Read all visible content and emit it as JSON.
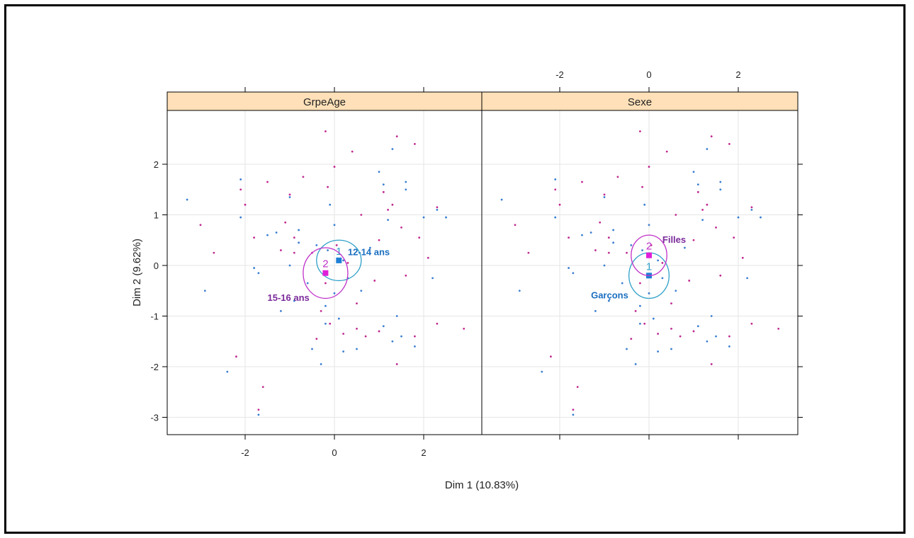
{
  "chart_data": {
    "type": "scatter",
    "xlabel": "Dim 1 (10.83%)",
    "ylabel": "Dim 2 (9.62%)",
    "xlim": [
      -3.5,
      3.5
    ],
    "ylim": [
      -3.3,
      3.2
    ],
    "x_ticks": [
      -2,
      0,
      2
    ],
    "y_ticks": [
      -3,
      -2,
      -1,
      0,
      1,
      2
    ],
    "x_tick_labels": [
      "-2",
      "0",
      "2"
    ],
    "y_tick_labels": [
      "-3",
      "-2",
      "-1",
      "0",
      "1",
      "2"
    ],
    "grid": true,
    "colors": {
      "group1": "#1e7fd6",
      "group2": "#e020d8",
      "dot_a": "#3a7fd0",
      "dot_b": "#c02890",
      "label1": "#1a6fc0",
      "label2": "#7a2a9a",
      "ellipse1": "#2fa0c8",
      "ellipse2": "#c030c8",
      "strip": "#ffe0b8"
    },
    "points": [
      [
        -3.3,
        1.3
      ],
      [
        -3.0,
        0.8
      ],
      [
        -2.9,
        -0.5
      ],
      [
        -2.7,
        0.25
      ],
      [
        -2.4,
        -2.1
      ],
      [
        -2.2,
        -1.8
      ],
      [
        -2.1,
        1.7
      ],
      [
        -2.1,
        1.5
      ],
      [
        -2.1,
        0.95
      ],
      [
        -2.0,
        1.2
      ],
      [
        -1.8,
        -0.05
      ],
      [
        -1.8,
        0.55
      ],
      [
        -1.7,
        -0.15
      ],
      [
        -1.7,
        -2.85
      ],
      [
        -1.7,
        -2.95
      ],
      [
        -1.6,
        -2.4
      ],
      [
        -1.5,
        0.6
      ],
      [
        -1.5,
        1.65
      ],
      [
        -1.3,
        0.65
      ],
      [
        -1.2,
        0.3
      ],
      [
        -1.2,
        -0.9
      ],
      [
        -1.1,
        0.85
      ],
      [
        -1.0,
        1.35
      ],
      [
        -1.0,
        1.4
      ],
      [
        -1.0,
        0.0
      ],
      [
        -0.9,
        0.25
      ],
      [
        -0.9,
        -0.7
      ],
      [
        -0.9,
        0.55
      ],
      [
        -0.8,
        0.7
      ],
      [
        -0.7,
        1.75
      ],
      [
        -0.6,
        -0.35
      ],
      [
        -0.5,
        0.25
      ],
      [
        -0.5,
        -1.65
      ],
      [
        -0.4,
        -1.45
      ],
      [
        -0.4,
        0.4
      ],
      [
        -0.3,
        -0.9
      ],
      [
        -0.3,
        -1.95
      ],
      [
        -0.2,
        2.65
      ],
      [
        -0.2,
        -0.8
      ],
      [
        -0.15,
        1.55
      ],
      [
        -0.15,
        0.3
      ],
      [
        -0.1,
        -1.15
      ],
      [
        -0.1,
        1.2
      ],
      [
        0.0,
        1.95
      ],
      [
        0.0,
        0.8
      ],
      [
        0.05,
        0.4
      ],
      [
        0.1,
        -1.05
      ],
      [
        0.2,
        -1.35
      ],
      [
        0.2,
        -1.7
      ],
      [
        0.3,
        0.05
      ],
      [
        0.3,
        -0.25
      ],
      [
        0.4,
        2.25
      ],
      [
        0.5,
        -1.65
      ],
      [
        0.5,
        -1.25
      ],
      [
        0.6,
        -0.5
      ],
      [
        0.7,
        -1.4
      ],
      [
        0.8,
        0.35
      ],
      [
        0.9,
        -0.3
      ],
      [
        1.0,
        1.85
      ],
      [
        1.0,
        -1.3
      ],
      [
        1.1,
        1.6
      ],
      [
        1.1,
        1.45
      ],
      [
        1.1,
        -1.2
      ],
      [
        1.2,
        1.1
      ],
      [
        1.3,
        -1.5
      ],
      [
        1.3,
        1.2
      ],
      [
        1.3,
        2.3
      ],
      [
        1.4,
        2.55
      ],
      [
        1.4,
        -1.0
      ],
      [
        1.4,
        -1.95
      ],
      [
        1.5,
        -1.4
      ],
      [
        1.5,
        0.75
      ],
      [
        1.6,
        1.5
      ],
      [
        1.6,
        -0.2
      ],
      [
        1.6,
        1.65
      ],
      [
        1.8,
        2.4
      ],
      [
        1.8,
        -1.6
      ],
      [
        1.9,
        0.55
      ],
      [
        2.0,
        0.95
      ],
      [
        2.1,
        0.15
      ],
      [
        2.2,
        -0.25
      ],
      [
        2.3,
        1.15
      ],
      [
        2.3,
        1.1
      ],
      [
        2.3,
        -1.15
      ],
      [
        2.5,
        0.95
      ],
      [
        2.9,
        -1.25
      ],
      [
        1.2,
        0.9
      ],
      [
        0.6,
        1.0
      ],
      [
        -0.8,
        0.45
      ],
      [
        1.0,
        0.5
      ],
      [
        0.2,
        0.1
      ],
      [
        -0.2,
        -0.35
      ],
      [
        0.0,
        -0.55
      ],
      [
        0.5,
        -0.75
      ],
      [
        -0.2,
        -1.15
      ],
      [
        1.8,
        -1.4
      ]
    ],
    "panels": [
      {
        "title": "GrpeAge",
        "categories": [
          {
            "id": "1",
            "name": "12-14 ans",
            "x": 0.1,
            "y": 0.1,
            "rx": 0.5,
            "ry": 0.4,
            "label_dx": 0.2,
            "label_dy": 0.1
          },
          {
            "id": "2",
            "name": "15-16 ans",
            "x": -0.2,
            "y": -0.15,
            "rx": 0.5,
            "ry": 0.5,
            "label_dx": -1.3,
            "label_dy": -0.55
          }
        ]
      },
      {
        "title": "Sexe",
        "categories": [
          {
            "id": "1",
            "name": "Garçons",
            "x": 0.0,
            "y": -0.2,
            "rx": 0.45,
            "ry": 0.45,
            "label_dx": -1.3,
            "label_dy": -0.45
          },
          {
            "id": "2",
            "name": "Filles",
            "x": 0.0,
            "y": 0.2,
            "rx": 0.4,
            "ry": 0.4,
            "label_dx": 0.3,
            "label_dy": 0.25
          }
        ]
      }
    ]
  }
}
